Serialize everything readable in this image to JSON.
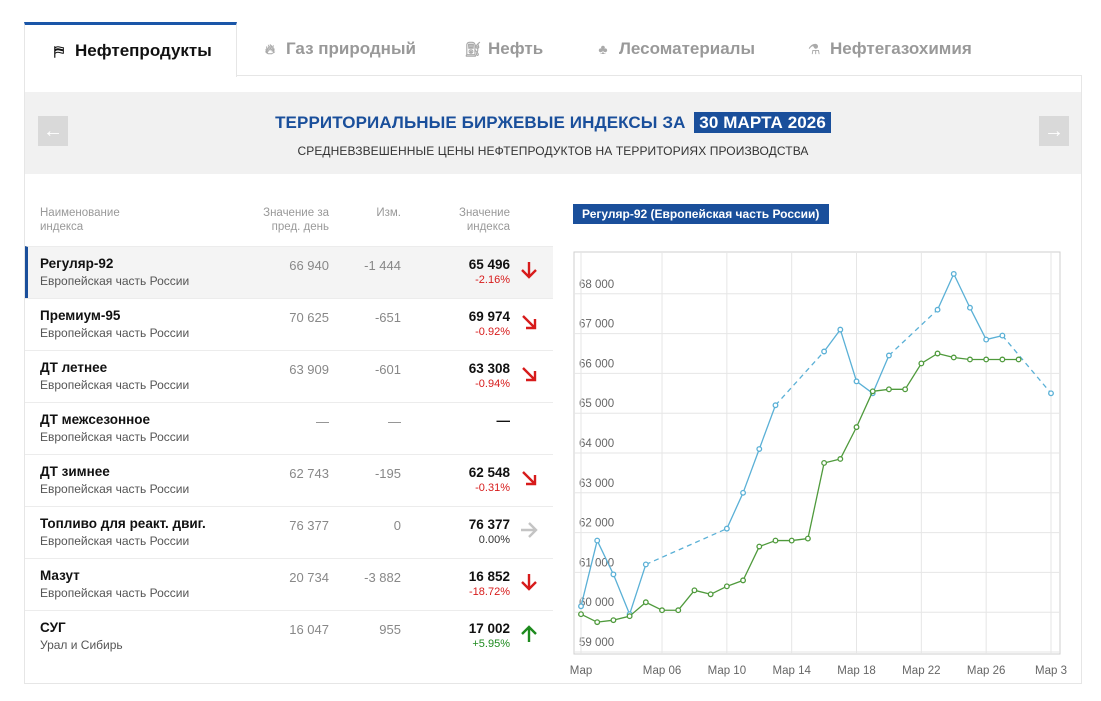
{
  "tabs": [
    {
      "label": "Нефтепродукты",
      "icon": "oil-products-icon",
      "active": true
    },
    {
      "label": "Газ природный",
      "icon": "flame-icon",
      "active": false
    },
    {
      "label": "Нефть",
      "icon": "oil-pump-icon",
      "active": false
    },
    {
      "label": "Лесоматериалы",
      "icon": "trees-icon",
      "active": false
    },
    {
      "label": "Нефтегазохимия",
      "icon": "chemistry-icon",
      "active": false
    }
  ],
  "banner": {
    "title": "ТЕРРИТОРИАЛЬНЫЕ БИРЖЕВЫЕ ИНДЕКСЫ ЗА",
    "date": "30 МАРТА 2026",
    "subtitle": "СРЕДНЕВЗВЕШЕННЫЕ ЦЕНЫ НЕФТЕПРОДУКТОВ НА ТЕРРИТОРИЯХ ПРОИЗВОДСТВА",
    "prev_arrow": "←",
    "next_arrow": "→"
  },
  "table": {
    "headers": {
      "name": [
        "Наименование",
        "индекса"
      ],
      "prev": [
        "Значение за",
        "пред. день"
      ],
      "change": [
        "Изм."
      ],
      "value": [
        "Значение",
        "индекса"
      ]
    },
    "rows": [
      {
        "name": "Регуляр-92",
        "region": "Европейская часть России",
        "prev": "66 940",
        "change": "-1 444",
        "value": "65 496",
        "pct": "-2.16%",
        "trend": "down-strong"
      },
      {
        "name": "Премиум-95",
        "region": "Европейская часть России",
        "prev": "70 625",
        "change": "-651",
        "value": "69 974",
        "pct": "-0.92%",
        "trend": "down"
      },
      {
        "name": "ДТ летнее",
        "region": "Европейская часть России",
        "prev": "63 909",
        "change": "-601",
        "value": "63 308",
        "pct": "-0.94%",
        "trend": "down"
      },
      {
        "name": "ДТ межсезонное",
        "region": "Европейская часть России",
        "prev": "—",
        "change": "—",
        "value": "—",
        "pct": "",
        "trend": "none"
      },
      {
        "name": "ДТ зимнее",
        "region": "Европейская часть России",
        "prev": "62 743",
        "change": "-195",
        "value": "62 548",
        "pct": "-0.31%",
        "trend": "down"
      },
      {
        "name": "Топливо для реакт. двиг.",
        "region": "Европейская часть России",
        "prev": "76 377",
        "change": "0",
        "value": "76 377",
        "pct": "0.00%",
        "trend": "flat"
      },
      {
        "name": "Мазут",
        "region": "Европейская часть России",
        "prev": "20 734",
        "change": "-3 882",
        "value": "16 852",
        "pct": "-18.72%",
        "trend": "down-strong"
      },
      {
        "name": "СУГ",
        "region": "Урал и Сибирь",
        "prev": "16 047",
        "change": "955",
        "value": "17 002",
        "pct": "+5.95%",
        "trend": "up"
      }
    ],
    "active_row": 0
  },
  "chart_label": "Регуляр-92 (Европейская часть России)",
  "chart_data": {
    "type": "line",
    "title": "Регуляр-92 (Европейская часть России)",
    "x": [
      "Мар 01",
      "Мар 02",
      "Мар 03",
      "Мар 04",
      "Мар 05",
      "Мар 06",
      "Мар 07",
      "Мар 08",
      "Мар 09",
      "Мар 10",
      "Мар 11",
      "Мар 12",
      "Мар 13",
      "Мар 14",
      "Мар 15",
      "Мар 16",
      "Мар 17",
      "Мар 18",
      "Мар 19",
      "Мар 20",
      "Мар 21",
      "Мар 22",
      "Мар 23",
      "Мар 24",
      "Мар 25",
      "Мар 26",
      "Мар 27",
      "Мар 28",
      "Мар 29",
      "Мар 30"
    ],
    "x_tick_labels": [
      "Мар",
      "Мар 06",
      "Мар 10",
      "Мар 14",
      "Мар 18",
      "Мар 22",
      "Мар 26",
      "Мар 3"
    ],
    "y_tick_labels": [
      "59 000",
      "60 000",
      "61 000",
      "62 000",
      "63 000",
      "64 000",
      "65 000",
      "66 000",
      "67 000",
      "68 000"
    ],
    "ylim": [
      58950,
      69050
    ],
    "grid": true,
    "series": [
      {
        "color": "#5ab0d6",
        "values": [
          60150,
          61800,
          60950,
          59950,
          61200,
          null,
          null,
          null,
          null,
          62100,
          63000,
          64100,
          65200,
          null,
          null,
          66550,
          67100,
          65800,
          65500,
          66450,
          null,
          null,
          67600,
          68500,
          67650,
          66850,
          66950,
          null,
          null,
          65500
        ]
      },
      {
        "color": "#4f9a3c",
        "values": [
          59950,
          59750,
          59800,
          59900,
          60250,
          60050,
          60050,
          60550,
          60450,
          60650,
          60800,
          61650,
          61800,
          61800,
          61850,
          63750,
          63850,
          64650,
          65550,
          65600,
          65600,
          66250,
          66500,
          66400,
          66350,
          66350,
          66350,
          66350,
          null,
          null
        ]
      }
    ]
  },
  "colors": {
    "accent": "#1a4f9b",
    "negative": "#d71b1b",
    "positive": "#1e8a1e"
  }
}
